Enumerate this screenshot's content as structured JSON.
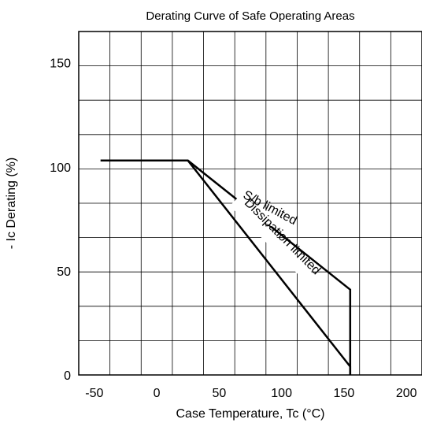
{
  "chart_data": {
    "type": "line",
    "title": "Derating Curve of Safe Operating Areas",
    "xlabel": "Case Temperature, Tc (°C)",
    "ylabel": "- Ic Derating (%)",
    "xlim": [
      -62.5,
      212.5
    ],
    "ylim": [
      0,
      165
    ],
    "xticks": [
      -50,
      0,
      50,
      100,
      150,
      200
    ],
    "yticks": [
      0,
      50,
      100,
      150
    ],
    "x_gridlines": [
      -62.5,
      -37.5,
      -12.5,
      12.5,
      37.5,
      62.5,
      87.5,
      112.5,
      137.5,
      162.5,
      187.5,
      212.5
    ],
    "y_gridlines": [
      16.5,
      33,
      49.5,
      66,
      82.5,
      99,
      115.5,
      132,
      148.5
    ],
    "grid": true,
    "legend": "none",
    "series": [
      {
        "name": "S/b limited",
        "x": [
          -45,
          25,
          155,
          155
        ],
        "y": [
          103,
          103,
          41,
          0
        ]
      },
      {
        "name": "Dissipation limited",
        "x": [
          25,
          155,
          155
        ],
        "y": [
          103,
          4,
          0
        ]
      }
    ],
    "annotations": [
      "S/b limited",
      "Dissipation limited"
    ],
    "line_color": "#000000",
    "grid_color": "#000000"
  }
}
